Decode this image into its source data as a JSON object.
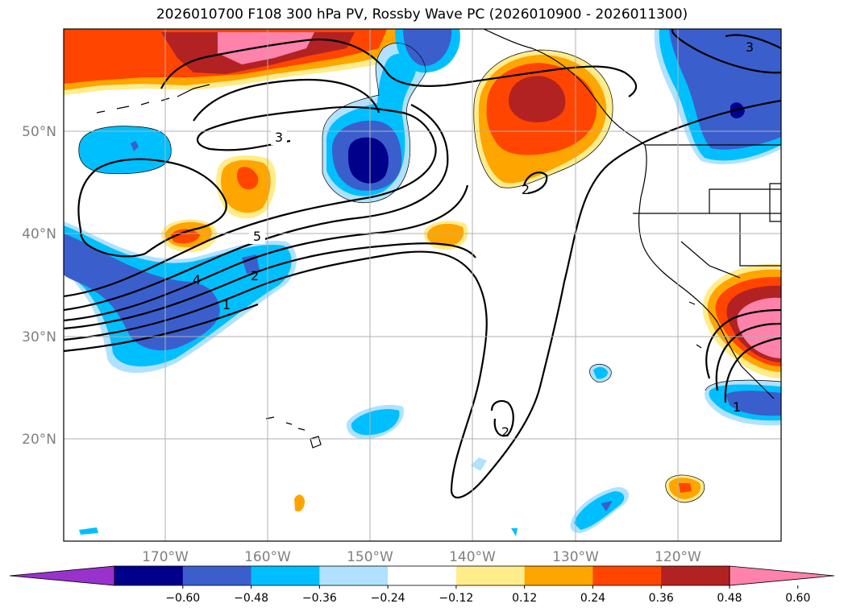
{
  "title": "2026010700 F108 300 hPa PV, Rossby Wave PC (2026010900 - 2026011300)",
  "map": {
    "projection": "PlateCarree",
    "lon_range": [
      -180,
      -110
    ],
    "lat_range": [
      10,
      60
    ],
    "lat_ticks": [
      "20°N",
      "30°N",
      "40°N",
      "50°N"
    ],
    "lon_ticks": [
      "170°W",
      "160°W",
      "150°W",
      "140°W",
      "130°W",
      "120°W"
    ],
    "gridlines": true
  },
  "colorbar": {
    "orientation": "horizontal",
    "extend": "both",
    "colors": [
      "#9932cc",
      "#00008b",
      "#3a5fcd",
      "#00bfff",
      "#b0e2ff",
      "#ffffff",
      "#ffec8b",
      "#ffa500",
      "#ff4500",
      "#b22222",
      "#ff82ab"
    ],
    "tick_labels": [
      "−0.60",
      "−0.48",
      "−0.36",
      "−0.24",
      "−0.12",
      "0.12",
      "0.24",
      "0.36",
      "0.48",
      "0.60"
    ]
  },
  "contour_labels": [
    "3",
    "5",
    "4",
    "2",
    "1",
    "2",
    "2",
    "3",
    "1"
  ]
}
